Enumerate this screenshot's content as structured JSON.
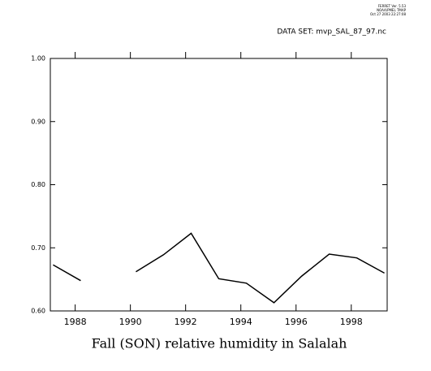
{
  "chart_data": {
    "type": "line",
    "header_lines": [
      "FERRET Ver. 5.53",
      "NOAA/PMEL TMAP",
      "Oct 27 2003 22:27:08"
    ],
    "dataset": "DATA SET: mvp_SAL_87_97.nc",
    "title": "Fall (SON) relative humidity in Salalah",
    "x": [
      1987.2,
      1988.2,
      1989.2,
      1990.2,
      1991.2,
      1992.2,
      1993.2,
      1994.2,
      1995.2,
      1996.2,
      1997.2,
      1998.2,
      1999.2
    ],
    "series": [
      {
        "color": "#000000",
        "values": [
          0.673,
          0.648,
          null,
          0.662,
          0.689,
          0.723,
          0.651,
          0.644,
          0.613,
          0.655,
          0.69,
          0.684,
          0.66
        ]
      }
    ],
    "xlim": [
      1987.1,
      1999.3
    ],
    "xticks": [
      1988,
      1990,
      1992,
      1994,
      1996,
      1998
    ],
    "ylim": [
      0.6,
      1.0
    ],
    "yticks": [
      {
        "value": 0.6,
        "label": "0.60"
      },
      {
        "value": 0.7,
        "label": "0.70"
      },
      {
        "value": 0.8,
        "label": "0.80"
      },
      {
        "value": 0.9,
        "label": "0.90"
      },
      {
        "value": 1.0,
        "label": "1.00"
      }
    ]
  }
}
